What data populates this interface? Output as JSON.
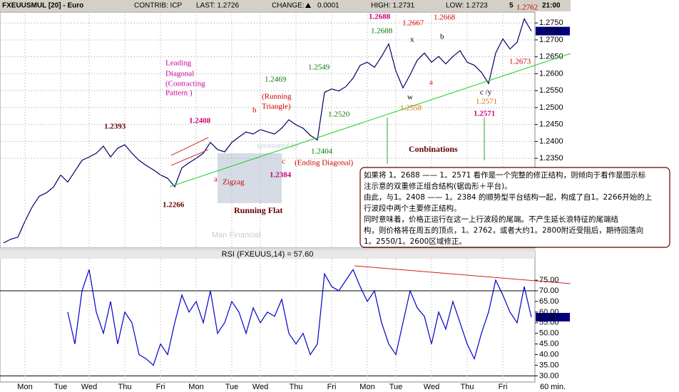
{
  "header": {
    "symbol": "FXEUUSMUL [20] - Euro",
    "contrib": "CONTRIB: ICP",
    "last": "LAST: 1.2726",
    "change_label": "CHANGE:",
    "change": "0.0001",
    "high": "HIGH: 1.2731",
    "low": "LOW: 1.2723",
    "count": "5",
    "time": "21:00"
  },
  "chart_data": [
    {
      "type": "line",
      "color": "#000066",
      "values": [
        1.21,
        1.2111,
        1.2117,
        1.2164,
        1.2206,
        1.2238,
        1.2248,
        1.2265,
        1.2301,
        1.228,
        1.2312,
        1.2344,
        1.2354,
        1.2365,
        1.2386,
        1.2354,
        1.238,
        1.239,
        1.2365,
        1.2344,
        1.2329,
        1.2316,
        1.2301,
        1.2291,
        1.2266,
        1.2322,
        1.2337,
        1.235,
        1.2365,
        1.2397,
        1.2376,
        1.2369,
        1.2397,
        1.2413,
        1.2428,
        1.2422,
        1.2435,
        1.2428,
        1.2422,
        1.2439,
        1.2464,
        1.2449,
        1.2439,
        1.2418,
        1.2404,
        1.2545,
        1.2555,
        1.2549,
        1.2562,
        1.2587,
        1.2625,
        1.2634,
        1.2619,
        1.2651,
        1.2688,
        1.2608,
        1.2558,
        1.2597,
        1.264,
        1.2661,
        1.2634,
        1.2651,
        1.2629,
        1.2651,
        1.2668,
        1.2634,
        1.2625,
        1.2604,
        1.2571,
        1.2661,
        1.2703,
        1.2673,
        1.2693,
        1.2762,
        1.2726
      ],
      "value_labels": [
        null,
        null,
        null,
        null,
        null,
        null,
        null,
        null,
        null,
        null,
        null,
        null,
        null,
        null,
        null,
        null,
        null,
        null,
        null,
        null,
        null,
        null,
        null,
        null,
        null,
        null,
        null,
        null,
        null,
        null,
        null,
        null,
        null,
        null,
        null,
        null,
        null,
        null,
        null,
        null,
        null,
        null,
        null,
        null,
        null,
        null,
        null,
        null,
        null,
        null,
        null,
        null,
        null,
        null,
        null,
        null,
        null,
        null,
        null,
        null,
        null,
        null,
        null,
        null,
        null,
        null,
        null,
        null,
        null,
        null,
        null,
        null,
        null,
        null,
        "1.2726"
      ],
      "ylim": [
        1.2085,
        1.2782
      ],
      "yticks": [
        {
          "value": 1.235,
          "label": "1.2350"
        },
        {
          "value": 1.24,
          "label": "1.2400"
        },
        {
          "value": 1.245,
          "label": "1.2450"
        },
        {
          "value": 1.25,
          "label": "1.2500"
        },
        {
          "value": 1.255,
          "label": "1.2550"
        },
        {
          "value": 1.26,
          "label": "1.2600"
        },
        {
          "value": 1.265,
          "label": "1.2650"
        },
        {
          "value": 1.27,
          "label": "1.2700"
        },
        {
          "value": 1.275,
          "label": "1.2750"
        }
      ],
      "grid": true,
      "annotations": [
        "1.2688",
        "1.2688",
        "1.2667",
        "1.2668",
        "x",
        "b",
        "1.2762",
        "1.2673",
        "a",
        "c /y",
        "w",
        "1.2571",
        "1.2571",
        "1.2558",
        "1.2549",
        "1.2469",
        "1.2520",
        "1.2404",
        "c",
        "(Ending Diagonal)",
        "(Running",
        "Triangle)",
        "b",
        "Leading",
        "Diagonal",
        "(Contracting",
        "Pattern )",
        "1.2408",
        "1.2393",
        "a",
        "Zigzag",
        "1.2384",
        "1.2266",
        "Running Flat",
        "Conbinations",
        "sponsored by",
        "Man Financial"
      ],
      "note": [
        "如果将 1。2688 —— 1。2571 看作是一个完整的修正结构，则倾向于看作是图示标",
        "注示意的双重修正组合结构(锯齿形＋平台)。",
        "由此，与1。2408 —— 1。2384 的顺势型平台结构一起，构成了自1。2266开始的上",
        "行波段中两个主要修正结构。",
        "同时意味着，价格正运行在这一上行波段的尾端。不产生延长浪特征的尾端结",
        "构，则价格将在周五的顶点，1。2762，或者大约1。2800附近受阻后，期待回落向",
        "1。2550/1。2600区域修正。"
      ]
    },
    {
      "type": "line",
      "title": "RSI (FXEUUS,14) = 57.60",
      "color": "#0000cc",
      "xlabel": "60 min.",
      "categories": [
        null,
        null,
        null,
        "Mon",
        null,
        null,
        null,
        null,
        "Tue",
        null,
        null,
        null,
        "Wed",
        null,
        null,
        null,
        null,
        "Thu",
        null,
        null,
        null,
        null,
        "Fri",
        null,
        null,
        null,
        null,
        "Mon",
        null,
        null,
        null,
        null,
        "Tue",
        null,
        null,
        null,
        "Wed",
        null,
        null,
        null,
        null,
        "Thu",
        null,
        null,
        null,
        null,
        "Fri",
        null,
        null,
        null,
        null,
        "Mon",
        null,
        null,
        null,
        "Tue",
        null,
        null,
        null,
        null,
        "Wed",
        null,
        null,
        null,
        null,
        "Thu",
        null,
        null,
        null,
        null,
        "Fri",
        null,
        null,
        null,
        null
      ],
      "values": [
        null,
        null,
        null,
        null,
        null,
        null,
        null,
        null,
        null,
        60,
        45,
        70,
        80,
        60,
        50,
        65,
        45,
        60,
        55,
        40,
        38,
        35,
        45,
        40,
        55,
        68,
        60,
        65,
        55,
        70,
        50,
        55,
        65,
        60,
        50,
        62,
        55,
        60,
        58,
        66,
        50,
        45,
        50,
        40,
        45,
        78,
        72,
        70,
        75,
        80,
        72,
        65,
        70,
        55,
        45,
        40,
        55,
        70,
        62,
        58,
        45,
        60,
        52,
        65,
        55,
        45,
        38,
        50,
        60,
        75,
        68,
        60,
        55,
        72,
        57.6
      ],
      "value_labels": [
        null,
        null,
        null,
        null,
        null,
        null,
        null,
        null,
        null,
        null,
        null,
        null,
        null,
        null,
        null,
        null,
        null,
        null,
        null,
        null,
        null,
        null,
        null,
        null,
        null,
        null,
        null,
        null,
        null,
        null,
        null,
        null,
        null,
        null,
        null,
        null,
        null,
        null,
        null,
        null,
        null,
        null,
        null,
        null,
        null,
        null,
        null,
        null,
        null,
        null,
        null,
        null,
        null,
        null,
        null,
        null,
        null,
        null,
        null,
        null,
        null,
        null,
        null,
        null,
        null,
        null,
        null,
        null,
        null,
        null,
        null,
        null,
        null,
        null,
        "57.60"
      ],
      "ylim": [
        27.1,
        85.1
      ],
      "yticks": [
        {
          "value": 30,
          "label": "30.00"
        },
        {
          "value": 35,
          "label": "35.00"
        },
        {
          "value": 40,
          "label": "40.00"
        },
        {
          "value": 45,
          "label": "45.00"
        },
        {
          "value": 50,
          "label": "50.00"
        },
        {
          "value": 55,
          "label": "55.00"
        },
        {
          "value": 60,
          "label": "60.00"
        },
        {
          "value": 65,
          "label": "65.00"
        },
        {
          "value": 70,
          "label": "70.00"
        },
        {
          "value": 75,
          "label": "75.00"
        }
      ],
      "reference_lines": [
        70,
        30
      ]
    }
  ]
}
